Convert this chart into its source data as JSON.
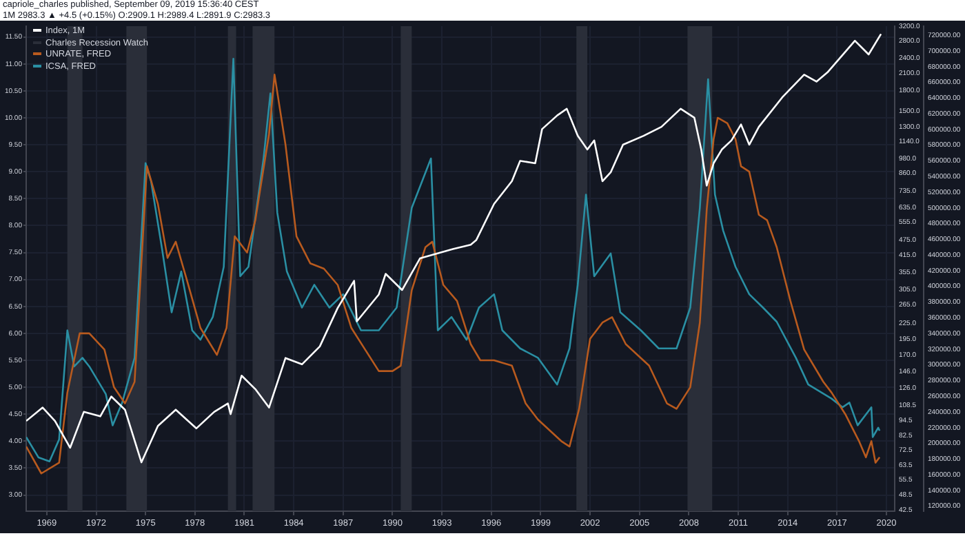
{
  "chart_data": {
    "type": "line",
    "annotations": [
      "capriole_charles published, September 09, 2019 15:36:40 CEST",
      "1M 2983.3 ▲ +4.5 (+0.15%) O:2909.1 H:2989.4 L:2891.9 C:2983.3",
      "Charles Recession Watch"
    ],
    "series": [
      {
        "name": "Index, 1M",
        "color": "#ffffff",
        "axis": "y2",
        "x": [
          "1967-10",
          "1968-10",
          "1969-07",
          "1970-06",
          "1971-04",
          "1972-04",
          "1972-12",
          "1973-10",
          "1974-10",
          "1975-10",
          "1976-11",
          "1978-02",
          "1979-03",
          "1980-01",
          "1980-03",
          "1980-11",
          "1981-09",
          "1982-07",
          "1983-07",
          "1984-07",
          "1985-08",
          "1986-09",
          "1987-09",
          "1987-11",
          "1989-03",
          "1989-08",
          "1990-08",
          "1991-09",
          "1993-09",
          "1994-10",
          "1995-02",
          "1996-03",
          "1997-04",
          "1997-10",
          "1998-09",
          "1999-02",
          "2000-01",
          "2000-08",
          "2001-04",
          "2001-11",
          "2002-04",
          "2002-10",
          "2003-04",
          "2004-01",
          "2005-04",
          "2006-05",
          "2007-07",
          "2008-05",
          "2008-10",
          "2009-02",
          "2009-07",
          "2010-01",
          "2010-08",
          "2011-03",
          "2011-09",
          "2012-04",
          "2013-09",
          "2015-01",
          "2015-10",
          "2016-06",
          "2018-02",
          "2018-12",
          "2019-09"
        ],
        "values": [
          94,
          106,
          94,
          74,
          102,
          98,
          117,
          104,
          65,
          90,
          104,
          88,
          102,
          110,
          100,
          141,
          125,
          106,
          165,
          156,
          183,
          258,
          329,
          229,
          291,
          350,
          303,
          402,
          437,
          454,
          473,
          654,
          801,
          961,
          940,
          1276,
          1441,
          1530,
          1202,
          1063,
          1153,
          801,
          867,
          1110,
          1202,
          1302,
          1530,
          1412,
          1063,
          770,
          940,
          1063,
          1153,
          1330,
          1110,
          1302,
          1693,
          2074,
          1951,
          2118,
          2810,
          2486,
          2983
        ]
      },
      {
        "name": "UNRATE, FRED",
        "color": "#b85a1e",
        "axis": "y",
        "x": [
          "1967-10",
          "1968-09",
          "1969-10",
          "1970-04",
          "1971-01",
          "1971-08",
          "1972-07",
          "1973-02",
          "1973-10",
          "1974-05",
          "1975-02",
          "1975-10",
          "1976-05",
          "1976-11",
          "1977-07",
          "1978-05",
          "1979-05",
          "1979-12",
          "1980-06",
          "1981-03",
          "1981-09",
          "1982-07",
          "1982-11",
          "1983-07",
          "1984-03",
          "1985-01",
          "1985-11",
          "1986-09",
          "1987-07",
          "1988-05",
          "1989-03",
          "1990-01",
          "1990-07",
          "1991-03",
          "1992-01",
          "1992-06",
          "1993-02",
          "1993-12",
          "1994-10",
          "1995-05",
          "1996-03",
          "1997-04",
          "1998-02",
          "1998-11",
          "2000-04",
          "2000-10",
          "2001-05",
          "2002-01",
          "2002-10",
          "2003-05",
          "2004-03",
          "2005-08",
          "2006-09",
          "2007-04",
          "2008-02",
          "2008-09",
          "2009-02",
          "2009-07",
          "2009-10",
          "2010-05",
          "2010-11",
          "2011-03",
          "2011-09",
          "2012-04",
          "2012-10",
          "2013-05",
          "2014-03",
          "2015-01",
          "2016-03",
          "2016-09",
          "2017-07",
          "2018-05",
          "2018-10",
          "2019-02",
          "2019-05",
          "2019-08"
        ],
        "values": [
          3.9,
          3.4,
          3.6,
          4.9,
          6.0,
          6.0,
          5.7,
          5.0,
          4.7,
          5.1,
          9.1,
          8.4,
          7.4,
          7.7,
          7.0,
          6.1,
          5.6,
          6.1,
          7.8,
          7.5,
          8.1,
          9.7,
          10.8,
          9.5,
          7.8,
          7.3,
          7.2,
          6.9,
          6.1,
          5.7,
          5.3,
          5.3,
          5.4,
          6.8,
          7.6,
          7.7,
          6.9,
          6.6,
          5.8,
          5.5,
          5.5,
          5.4,
          4.7,
          4.4,
          4.0,
          3.9,
          4.6,
          5.9,
          6.2,
          6.3,
          5.8,
          5.4,
          4.7,
          4.6,
          5.0,
          6.2,
          8.3,
          9.6,
          10.0,
          9.9,
          9.6,
          9.1,
          9.0,
          8.2,
          8.1,
          7.6,
          6.6,
          5.7,
          5.1,
          4.9,
          4.5,
          4.0,
          3.7,
          4.0,
          3.6,
          3.7
        ]
      },
      {
        "name": "ICSA, FRED",
        "color": "#2a8fa3",
        "axis": "y3",
        "x": [
          "1967-10",
          "1968-07",
          "1969-03",
          "1969-10",
          "1970-04",
          "1970-09",
          "1971-03",
          "1971-08",
          "1972-08",
          "1973-01",
          "1973-08",
          "1974-05",
          "1975-01",
          "1975-05",
          "1976-01",
          "1976-08",
          "1977-03",
          "1977-11",
          "1978-05",
          "1979-02",
          "1979-10",
          "1980-05",
          "1980-10",
          "1981-04",
          "1982-03",
          "1982-08",
          "1983-01",
          "1983-08",
          "1984-07",
          "1985-04",
          "1986-03",
          "1987-01",
          "1988-02",
          "1989-03",
          "1990-04",
          "1991-03",
          "1992-05",
          "1992-10",
          "1993-08",
          "1994-07",
          "1995-04",
          "1996-03",
          "1996-09",
          "1997-10",
          "1998-11",
          "2000-01",
          "2000-10",
          "2001-04",
          "2001-10",
          "2002-04",
          "2003-04",
          "2003-11",
          "2005-02",
          "2006-03",
          "2007-04",
          "2008-02",
          "2008-09",
          "2009-03",
          "2009-08",
          "2010-02",
          "2010-11",
          "2011-09",
          "2012-07",
          "2013-05",
          "2014-07",
          "2015-04",
          "2016-09",
          "2017-05",
          "2017-10",
          "2018-04",
          "2019-02",
          "2019-03",
          "2019-07",
          "2019-08"
        ],
        "values": [
          208000,
          182000,
          177000,
          205000,
          344000,
          298000,
          309000,
          298000,
          263000,
          223000,
          252000,
          309000,
          557000,
          534000,
          448000,
          367000,
          419000,
          344000,
          332000,
          361000,
          425000,
          690000,
          413000,
          425000,
          563000,
          646000,
          494000,
          419000,
          373000,
          402000,
          373000,
          390000,
          344000,
          344000,
          373000,
          500000,
          563000,
          344000,
          361000,
          332000,
          373000,
          390000,
          344000,
          321000,
          309000,
          275000,
          321000,
          402000,
          517000,
          413000,
          442000,
          367000,
          344000,
          321000,
          321000,
          373000,
          500000,
          664000,
          517000,
          471000,
          425000,
          390000,
          373000,
          355000,
          309000,
          275000,
          257000,
          246000,
          252000,
          223000,
          246000,
          208000,
          220000,
          216000
        ]
      }
    ],
    "bands": [
      {
        "axis": "x",
        "from": "1970-04",
        "to": "1971-03",
        "color": "#2a2e39"
      },
      {
        "axis": "x",
        "from": "1973-11",
        "to": "1975-02",
        "color": "#2a2e39"
      },
      {
        "axis": "x",
        "from": "1980-01",
        "to": "1980-07",
        "color": "#2a2e39"
      },
      {
        "axis": "x",
        "from": "1981-07",
        "to": "1982-11",
        "color": "#2a2e39"
      },
      {
        "axis": "x",
        "from": "1990-07",
        "to": "1991-03",
        "color": "#2a2e39"
      },
      {
        "axis": "x",
        "from": "2001-03",
        "to": "2001-11",
        "color": "#2a2e39"
      },
      {
        "axis": "x",
        "from": "2007-12",
        "to": "2009-06",
        "color": "#2a2e39"
      }
    ],
    "xlim": [
      "1967-10",
      "2020-07"
    ],
    "xticks": [
      "1969",
      "1972",
      "1975",
      "1978",
      "1981",
      "1984",
      "1987",
      "1990",
      "1993",
      "1996",
      "1999",
      "2002",
      "2005",
      "2008",
      "2011",
      "2014",
      "2017",
      "2020"
    ],
    "ylim": [
      2.7,
      11.7
    ],
    "yticks": [
      {
        "value": 3,
        "label": "3.00"
      },
      {
        "value": 3.5,
        "label": "3.50"
      },
      {
        "value": 4,
        "label": "4.00"
      },
      {
        "value": 4.5,
        "label": "4.50"
      },
      {
        "value": 5,
        "label": "5.00"
      },
      {
        "value": 5.5,
        "label": "5.50"
      },
      {
        "value": 6,
        "label": "6.00"
      },
      {
        "value": 6.5,
        "label": "6.50"
      },
      {
        "value": 7,
        "label": "7.00"
      },
      {
        "value": 7.5,
        "label": "7.50"
      },
      {
        "value": 8,
        "label": "8.00"
      },
      {
        "value": 8.5,
        "label": "8.50"
      },
      {
        "value": 9,
        "label": "9.00"
      },
      {
        "value": 9.5,
        "label": "9.50"
      },
      {
        "value": 10,
        "label": "10.00"
      },
      {
        "value": 10.5,
        "label": "10.50"
      },
      {
        "value": 11,
        "label": "11.00"
      },
      {
        "value": 11.5,
        "label": "11.50"
      }
    ],
    "y2lim": [
      42,
      3200
    ],
    "y2ticks": [
      {
        "value": 42.5,
        "label": "42.5"
      },
      {
        "value": 48.5,
        "label": "48.5"
      },
      {
        "value": 55.5,
        "label": "55.5"
      },
      {
        "value": 63.5,
        "label": "63.5"
      },
      {
        "value": 72.5,
        "label": "72.5"
      },
      {
        "value": 82.5,
        "label": "82.5"
      },
      {
        "value": 94.5,
        "label": "94.5"
      },
      {
        "value": 108.5,
        "label": "108.5"
      },
      {
        "value": 126,
        "label": "126.0"
      },
      {
        "value": 146,
        "label": "146.0"
      },
      {
        "value": 170,
        "label": "170.0"
      },
      {
        "value": 195,
        "label": "195.0"
      },
      {
        "value": 225,
        "label": "225.0"
      },
      {
        "value": 265,
        "label": "265.0"
      },
      {
        "value": 305,
        "label": "305.0"
      },
      {
        "value": 355,
        "label": "355.0"
      },
      {
        "value": 415,
        "label": "415.0"
      },
      {
        "value": 475,
        "label": "475.0"
      },
      {
        "value": 555,
        "label": "555.0"
      },
      {
        "value": 635,
        "label": "635.0"
      },
      {
        "value": 735,
        "label": "735.0"
      },
      {
        "value": 860,
        "label": "860.0"
      },
      {
        "value": 980,
        "label": "980.0"
      },
      {
        "value": 1140,
        "label": "1140.0"
      },
      {
        "value": 1300,
        "label": "1300.0"
      },
      {
        "value": 1500,
        "label": "1500.0"
      },
      {
        "value": 1800,
        "label": "1800.0"
      },
      {
        "value": 2100,
        "label": "2100.0"
      },
      {
        "value": 2400,
        "label": "2400.0"
      },
      {
        "value": 2800,
        "label": "2800.0"
      },
      {
        "value": 3200,
        "label": "3200.0"
      }
    ],
    "y3lim": [
      113600,
      731600
    ],
    "y3ticks": [
      {
        "value": 120000,
        "label": "120000.00"
      },
      {
        "value": 140000,
        "label": "140000.00"
      },
      {
        "value": 160000,
        "label": "160000.00"
      },
      {
        "value": 180000,
        "label": "180000.00"
      },
      {
        "value": 200000,
        "label": "200000.00"
      },
      {
        "value": 220000,
        "label": "220000.00"
      },
      {
        "value": 240000,
        "label": "240000.00"
      },
      {
        "value": 260000,
        "label": "260000.00"
      },
      {
        "value": 280000,
        "label": "280000.00"
      },
      {
        "value": 300000,
        "label": "300000.00"
      },
      {
        "value": 320000,
        "label": "320000.00"
      },
      {
        "value": 340000,
        "label": "340000.00"
      },
      {
        "value": 360000,
        "label": "360000.00"
      },
      {
        "value": 380000,
        "label": "380000.00"
      },
      {
        "value": 400000,
        "label": "400000.00"
      },
      {
        "value": 420000,
        "label": "420000.00"
      },
      {
        "value": 440000,
        "label": "440000.00"
      },
      {
        "value": 460000,
        "label": "460000.00"
      },
      {
        "value": 480000,
        "label": "480000.00"
      },
      {
        "value": 500000,
        "label": "500000.00"
      },
      {
        "value": 520000,
        "label": "520000.00"
      },
      {
        "value": 540000,
        "label": "540000.00"
      },
      {
        "value": 560000,
        "label": "560000.00"
      },
      {
        "value": 580000,
        "label": "580000.00"
      },
      {
        "value": 600000,
        "label": "600000.00"
      },
      {
        "value": 620000,
        "label": "620000.00"
      },
      {
        "value": 640000,
        "label": "640000.00"
      },
      {
        "value": 660000,
        "label": "660000.00"
      },
      {
        "value": 680000,
        "label": "680000.00"
      },
      {
        "value": 700000,
        "label": "700000.00"
      },
      {
        "value": 720000,
        "label": "720000.00"
      }
    ],
    "log": "y2",
    "grid": true,
    "legend": "top left",
    "marker": "none",
    "line_style": "solid"
  }
}
